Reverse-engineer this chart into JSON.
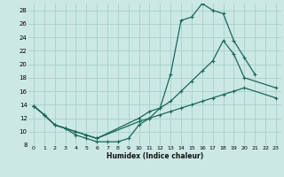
{
  "xlabel": "Humidex (Indice chaleur)",
  "bg_color": "#cce8e4",
  "grid_color": "#aad4cc",
  "line_color": "#1a6858",
  "xlim": [
    -0.5,
    23.5
  ],
  "ylim": [
    8,
    29
  ],
  "xticks": [
    0,
    1,
    2,
    3,
    4,
    5,
    6,
    7,
    8,
    9,
    10,
    11,
    12,
    13,
    14,
    15,
    16,
    17,
    18,
    19,
    20,
    21,
    22,
    23
  ],
  "yticks": [
    8,
    10,
    12,
    14,
    16,
    18,
    20,
    22,
    24,
    26,
    28
  ],
  "line1_x": [
    0,
    1,
    2,
    3,
    4,
    5,
    6,
    7,
    8,
    9,
    10,
    11,
    12,
    13,
    14,
    15,
    16,
    17,
    18,
    19,
    20,
    21
  ],
  "line1_y": [
    13.8,
    12.5,
    11.0,
    10.5,
    9.5,
    9.0,
    8.5,
    8.5,
    8.5,
    9.0,
    11.0,
    12.0,
    13.5,
    18.5,
    26.5,
    27.0,
    29.0,
    28.0,
    27.5,
    23.5,
    21.0,
    18.5
  ],
  "line2_x": [
    0,
    1,
    2,
    3,
    4,
    5,
    6,
    10,
    11,
    12,
    13,
    14,
    15,
    16,
    17,
    18,
    19,
    20,
    23
  ],
  "line2_y": [
    13.8,
    12.5,
    11.0,
    10.5,
    10.0,
    9.5,
    9.0,
    12.0,
    13.0,
    13.5,
    14.5,
    16.0,
    17.5,
    19.0,
    20.5,
    23.5,
    21.5,
    18.0,
    16.5
  ],
  "line3_x": [
    0,
    1,
    2,
    3,
    4,
    5,
    6,
    10,
    11,
    12,
    13,
    14,
    15,
    16,
    17,
    18,
    19,
    20,
    23
  ],
  "line3_y": [
    13.8,
    12.5,
    11.0,
    10.5,
    10.0,
    9.5,
    9.0,
    11.5,
    12.0,
    12.5,
    13.0,
    13.5,
    14.0,
    14.5,
    15.0,
    15.5,
    16.0,
    16.5,
    15.0
  ]
}
